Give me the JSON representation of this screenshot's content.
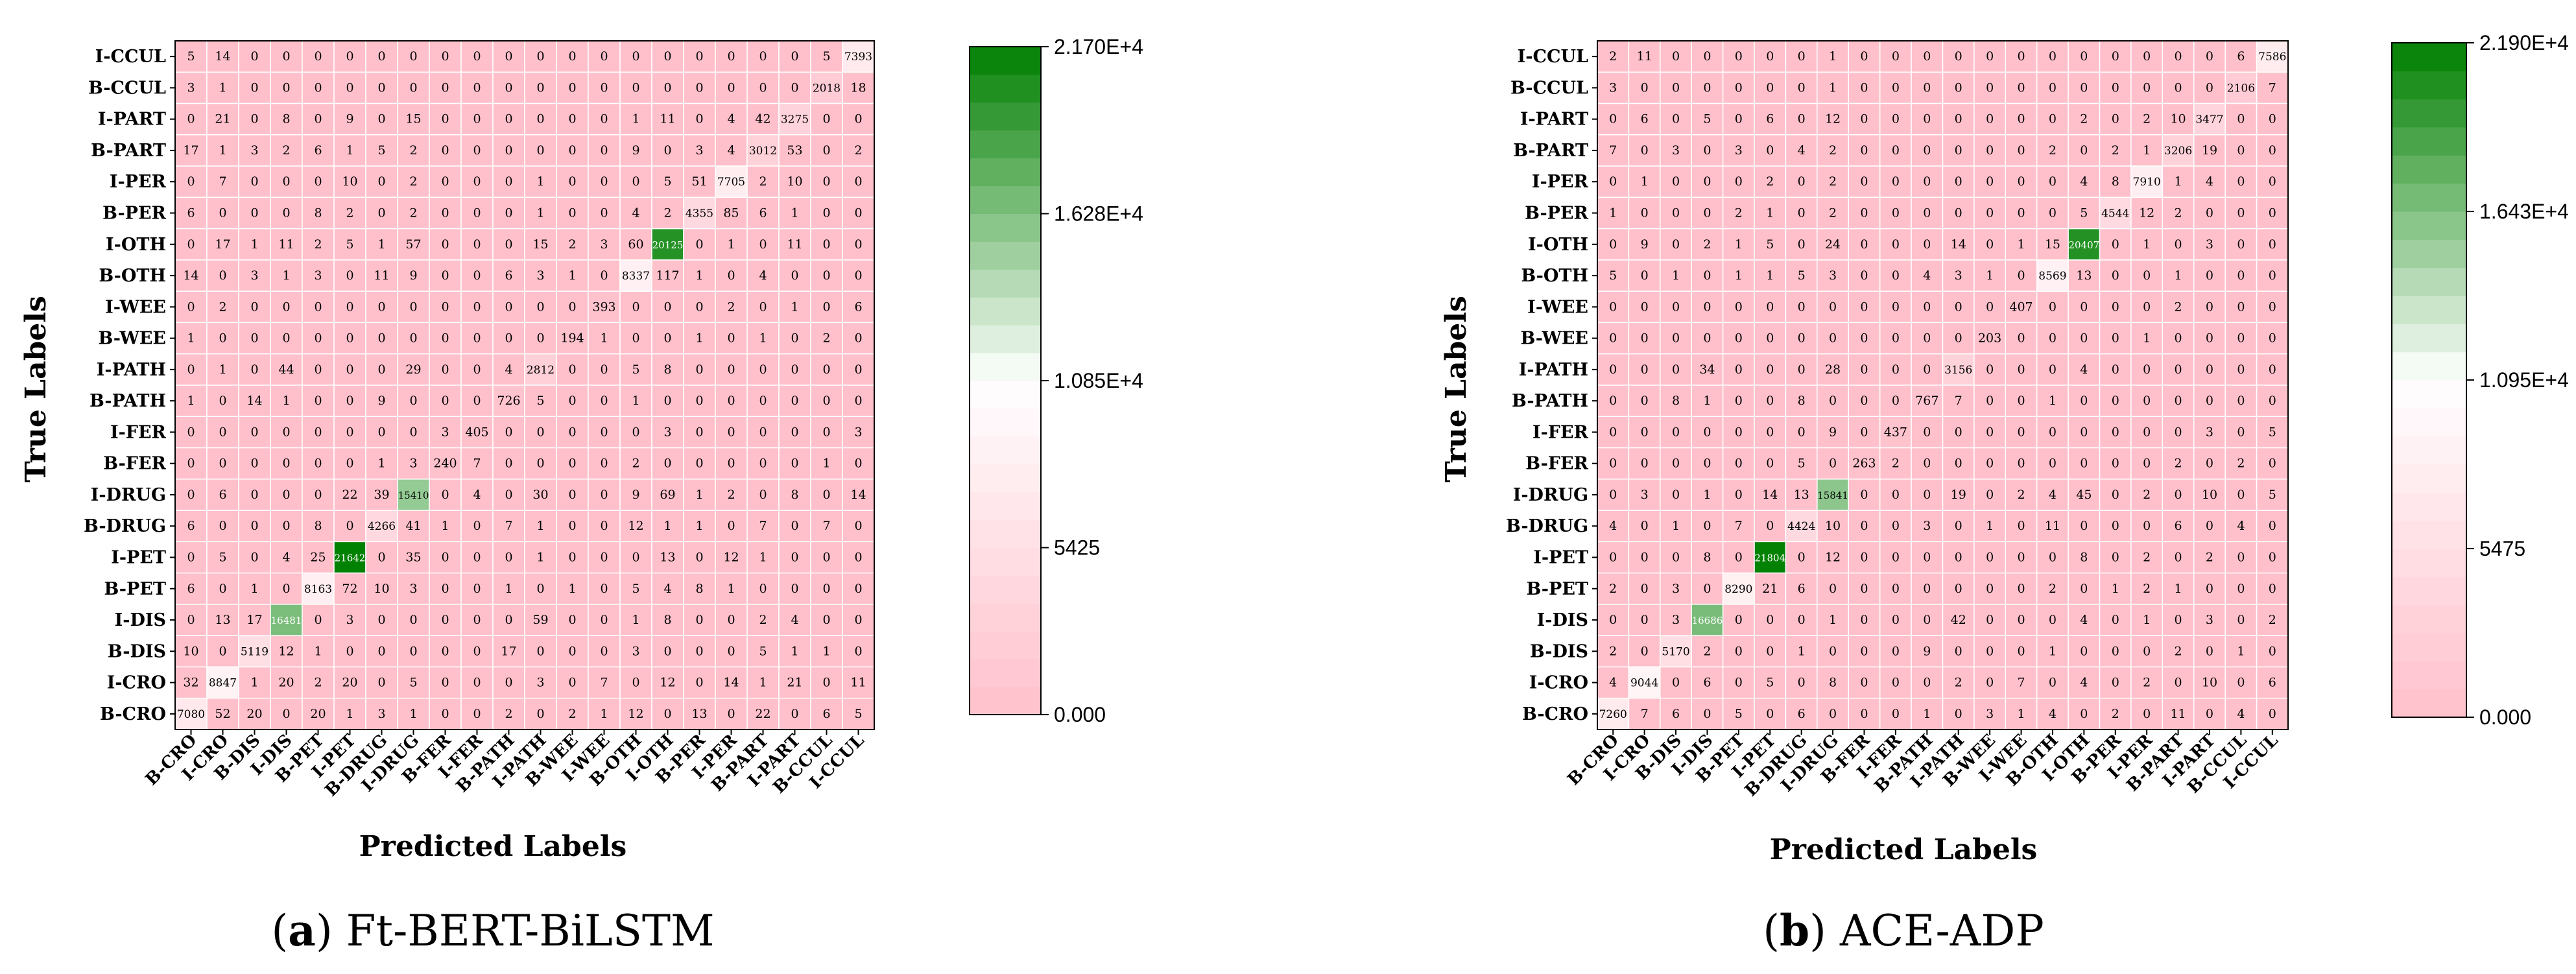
{
  "chart_data": [
    {
      "type": "heatmap",
      "caption_letter": "a",
      "caption_text": " Ft-BERT-BiLSTM",
      "xlabel": "Predicted Labels",
      "ylabel": "True Labels",
      "row_labels": [
        "I-CCUL",
        "B-CCUL",
        "I-PART",
        "B-PART",
        "I-PER",
        "B-PER",
        "I-OTH",
        "B-OTH",
        "I-WEE",
        "B-WEE",
        "I-PATH",
        "B-PATH",
        "I-FER",
        "B-FER",
        "I-DRUG",
        "B-DRUG",
        "I-PET",
        "B-PET",
        "I-DIS",
        "B-DIS",
        "I-CRO",
        "B-CRO"
      ],
      "col_labels": [
        "B-CRO",
        "I-CRO",
        "B-DIS",
        "I-DIS",
        "B-PET",
        "I-PET",
        "B-DRUG",
        "I-DRUG",
        "B-FER",
        "I-FER",
        "B-PATH",
        "I-PATH",
        "B-WEE",
        "I-WEE",
        "B-OTH",
        "I-OTH",
        "B-PER",
        "I-PER",
        "B-PART",
        "I-PART",
        "B-CCUL",
        "I-CCUL"
      ],
      "matrix": [
        [
          5,
          14,
          0,
          0,
          0,
          0,
          0,
          0,
          0,
          0,
          0,
          0,
          0,
          0,
          0,
          0,
          0,
          0,
          0,
          0,
          5,
          7393
        ],
        [
          3,
          1,
          0,
          0,
          0,
          0,
          0,
          0,
          0,
          0,
          0,
          0,
          0,
          0,
          0,
          0,
          0,
          0,
          0,
          0,
          2018,
          18
        ],
        [
          0,
          21,
          0,
          8,
          0,
          9,
          0,
          15,
          0,
          0,
          0,
          0,
          0,
          0,
          1,
          11,
          0,
          4,
          42,
          3275,
          0,
          0
        ],
        [
          17,
          1,
          3,
          2,
          6,
          1,
          5,
          2,
          0,
          0,
          0,
          0,
          0,
          0,
          9,
          0,
          3,
          4,
          3012,
          53,
          0,
          2
        ],
        [
          0,
          7,
          0,
          0,
          0,
          10,
          0,
          2,
          0,
          0,
          0,
          1,
          0,
          0,
          0,
          5,
          51,
          7705,
          2,
          10,
          0,
          0
        ],
        [
          6,
          0,
          0,
          0,
          8,
          2,
          0,
          2,
          0,
          0,
          0,
          1,
          0,
          0,
          4,
          2,
          4355,
          85,
          6,
          1,
          0,
          0
        ],
        [
          0,
          17,
          1,
          11,
          2,
          5,
          1,
          57,
          0,
          0,
          0,
          15,
          2,
          3,
          60,
          20125,
          0,
          1,
          0,
          11,
          0,
          0
        ],
        [
          14,
          0,
          3,
          1,
          3,
          0,
          11,
          9,
          0,
          0,
          6,
          3,
          1,
          0,
          8337,
          117,
          1,
          0,
          4,
          0,
          0,
          0
        ],
        [
          0,
          2,
          0,
          0,
          0,
          0,
          0,
          0,
          0,
          0,
          0,
          0,
          0,
          393,
          0,
          0,
          0,
          2,
          0,
          1,
          0,
          6
        ],
        [
          1,
          0,
          0,
          0,
          0,
          0,
          0,
          0,
          0,
          0,
          0,
          0,
          194,
          1,
          0,
          0,
          1,
          0,
          1,
          0,
          2,
          0
        ],
        [
          0,
          1,
          0,
          44,
          0,
          0,
          0,
          29,
          0,
          0,
          4,
          2812,
          0,
          0,
          5,
          8,
          0,
          0,
          0,
          0,
          0,
          0
        ],
        [
          1,
          0,
          14,
          1,
          0,
          0,
          9,
          0,
          0,
          0,
          726,
          5,
          0,
          0,
          1,
          0,
          0,
          0,
          0,
          0,
          0,
          0
        ],
        [
          0,
          0,
          0,
          0,
          0,
          0,
          0,
          0,
          3,
          405,
          0,
          0,
          0,
          0,
          0,
          3,
          0,
          0,
          0,
          0,
          0,
          3
        ],
        [
          0,
          0,
          0,
          0,
          0,
          0,
          1,
          3,
          240,
          7,
          0,
          0,
          0,
          0,
          2,
          0,
          0,
          0,
          0,
          0,
          1,
          0
        ],
        [
          0,
          6,
          0,
          0,
          0,
          22,
          39,
          15410,
          0,
          4,
          0,
          30,
          0,
          0,
          9,
          69,
          1,
          2,
          0,
          8,
          0,
          14
        ],
        [
          6,
          0,
          0,
          0,
          8,
          0,
          4266,
          41,
          1,
          0,
          7,
          1,
          0,
          0,
          12,
          1,
          1,
          0,
          7,
          0,
          7,
          0
        ],
        [
          0,
          5,
          0,
          4,
          25,
          21642,
          0,
          35,
          0,
          0,
          0,
          1,
          0,
          0,
          0,
          13,
          0,
          12,
          1,
          0,
          0,
          0
        ],
        [
          6,
          0,
          1,
          0,
          8163,
          72,
          10,
          3,
          0,
          0,
          1,
          0,
          1,
          0,
          5,
          4,
          8,
          1,
          0,
          0,
          0,
          0
        ],
        [
          0,
          13,
          17,
          16481,
          0,
          3,
          0,
          0,
          0,
          0,
          0,
          59,
          0,
          0,
          1,
          8,
          0,
          0,
          2,
          4,
          0,
          0
        ],
        [
          10,
          0,
          5119,
          12,
          1,
          0,
          0,
          0,
          0,
          0,
          17,
          0,
          0,
          0,
          3,
          0,
          0,
          0,
          5,
          1,
          1,
          0
        ],
        [
          32,
          8847,
          1,
          20,
          2,
          20,
          0,
          5,
          0,
          0,
          0,
          3,
          0,
          7,
          0,
          12,
          0,
          14,
          1,
          21,
          0,
          11
        ],
        [
          7080,
          52,
          20,
          0,
          20,
          1,
          3,
          1,
          0,
          0,
          2,
          0,
          2,
          1,
          12,
          0,
          13,
          0,
          22,
          0,
          6,
          5
        ]
      ],
      "colorbar_ticks": [
        "2.170E+4",
        "1.628E+4",
        "1.085E+4",
        "5425",
        "0.000"
      ],
      "vmin": 0,
      "vmax": 21700
    },
    {
      "type": "heatmap",
      "caption_letter": "b",
      "caption_text": " ACE-ADP",
      "xlabel": "Predicted Labels",
      "ylabel": "True Labels",
      "row_labels": [
        "I-CCUL",
        "B-CCUL",
        "I-PART",
        "B-PART",
        "I-PER",
        "B-PER",
        "I-OTH",
        "B-OTH",
        "I-WEE",
        "B-WEE",
        "I-PATH",
        "B-PATH",
        "I-FER",
        "B-FER",
        "I-DRUG",
        "B-DRUG",
        "I-PET",
        "B-PET",
        "I-DIS",
        "B-DIS",
        "I-CRO",
        "B-CRO"
      ],
      "col_labels": [
        "B-CRO",
        "I-CRO",
        "B-DIS",
        "I-DIS",
        "B-PET",
        "I-PET",
        "B-DRUG",
        "I-DRUG",
        "B-FER",
        "I-FER",
        "B-PATH",
        "I-PATH",
        "B-WEE",
        "I-WEE",
        "B-OTH",
        "I-OTH",
        "B-PER",
        "I-PER",
        "B-PART",
        "I-PART",
        "B-CCUL",
        "I-CCUL"
      ],
      "matrix": [
        [
          2,
          11,
          0,
          0,
          0,
          0,
          0,
          1,
          0,
          0,
          0,
          0,
          0,
          0,
          0,
          0,
          0,
          0,
          0,
          0,
          6,
          7586
        ],
        [
          3,
          0,
          0,
          0,
          0,
          0,
          0,
          1,
          0,
          0,
          0,
          0,
          0,
          0,
          0,
          0,
          0,
          0,
          0,
          0,
          2106,
          7
        ],
        [
          0,
          6,
          0,
          5,
          0,
          6,
          0,
          12,
          0,
          0,
          0,
          0,
          0,
          0,
          0,
          2,
          0,
          2,
          10,
          3477,
          0,
          0
        ],
        [
          7,
          0,
          3,
          0,
          3,
          0,
          4,
          2,
          0,
          0,
          0,
          0,
          0,
          0,
          2,
          0,
          2,
          1,
          3206,
          19,
          0,
          0
        ],
        [
          0,
          1,
          0,
          0,
          0,
          2,
          0,
          2,
          0,
          0,
          0,
          0,
          0,
          0,
          0,
          4,
          8,
          7910,
          1,
          4,
          0,
          0
        ],
        [
          1,
          0,
          0,
          0,
          2,
          1,
          0,
          2,
          0,
          0,
          0,
          0,
          0,
          0,
          0,
          5,
          4544,
          12,
          2,
          0,
          0,
          0
        ],
        [
          0,
          9,
          0,
          2,
          1,
          5,
          0,
          24,
          0,
          0,
          0,
          14,
          0,
          1,
          15,
          20407,
          0,
          1,
          0,
          3,
          0,
          0
        ],
        [
          5,
          0,
          1,
          0,
          1,
          1,
          5,
          3,
          0,
          0,
          4,
          3,
          1,
          0,
          8569,
          13,
          0,
          0,
          1,
          0,
          0,
          0
        ],
        [
          0,
          0,
          0,
          0,
          0,
          0,
          0,
          0,
          0,
          0,
          0,
          0,
          0,
          407,
          0,
          0,
          0,
          0,
          2,
          0,
          0,
          0
        ],
        [
          0,
          0,
          0,
          0,
          0,
          0,
          0,
          0,
          0,
          0,
          0,
          0,
          203,
          0,
          0,
          0,
          0,
          1,
          0,
          0,
          0,
          0
        ],
        [
          0,
          0,
          0,
          34,
          0,
          0,
          0,
          28,
          0,
          0,
          0,
          3156,
          0,
          0,
          0,
          4,
          0,
          0,
          0,
          0,
          0,
          0
        ],
        [
          0,
          0,
          8,
          1,
          0,
          0,
          8,
          0,
          0,
          0,
          767,
          7,
          0,
          0,
          1,
          0,
          0,
          0,
          0,
          0,
          0,
          0
        ],
        [
          0,
          0,
          0,
          0,
          0,
          0,
          0,
          9,
          0,
          437,
          0,
          0,
          0,
          0,
          0,
          0,
          0,
          0,
          0,
          3,
          0,
          5
        ],
        [
          0,
          0,
          0,
          0,
          0,
          0,
          5,
          0,
          263,
          2,
          0,
          0,
          0,
          0,
          0,
          0,
          0,
          0,
          2,
          0,
          2,
          0
        ],
        [
          0,
          3,
          0,
          1,
          0,
          14,
          13,
          15841,
          0,
          0,
          0,
          19,
          0,
          2,
          4,
          45,
          0,
          2,
          0,
          10,
          0,
          5
        ],
        [
          4,
          0,
          1,
          0,
          7,
          0,
          4424,
          10,
          0,
          0,
          3,
          0,
          1,
          0,
          11,
          0,
          0,
          0,
          6,
          0,
          4,
          0
        ],
        [
          0,
          0,
          0,
          8,
          0,
          21804,
          0,
          12,
          0,
          0,
          0,
          0,
          0,
          0,
          0,
          8,
          0,
          2,
          0,
          2,
          0,
          0
        ],
        [
          2,
          0,
          3,
          0,
          8290,
          21,
          6,
          0,
          0,
          0,
          0,
          0,
          0,
          0,
          2,
          0,
          1,
          2,
          1,
          0,
          0,
          0
        ],
        [
          0,
          0,
          3,
          16686,
          0,
          0,
          0,
          1,
          0,
          0,
          0,
          42,
          0,
          0,
          0,
          4,
          0,
          1,
          0,
          3,
          0,
          2
        ],
        [
          2,
          0,
          5170,
          2,
          0,
          0,
          1,
          0,
          0,
          0,
          9,
          0,
          0,
          0,
          1,
          0,
          0,
          0,
          2,
          0,
          1,
          0
        ],
        [
          4,
          9044,
          0,
          6,
          0,
          5,
          0,
          8,
          0,
          0,
          0,
          2,
          0,
          7,
          0,
          4,
          0,
          2,
          0,
          10,
          0,
          6
        ],
        [
          7260,
          7,
          6,
          0,
          5,
          0,
          6,
          0,
          0,
          0,
          1,
          0,
          3,
          1,
          4,
          0,
          2,
          0,
          11,
          0,
          4,
          0
        ]
      ],
      "colorbar_ticks": [
        "2.190E+4",
        "1.643E+4",
        "1.095E+4",
        "5475",
        "0.000"
      ],
      "vmin": 0,
      "vmax": 21900
    }
  ]
}
